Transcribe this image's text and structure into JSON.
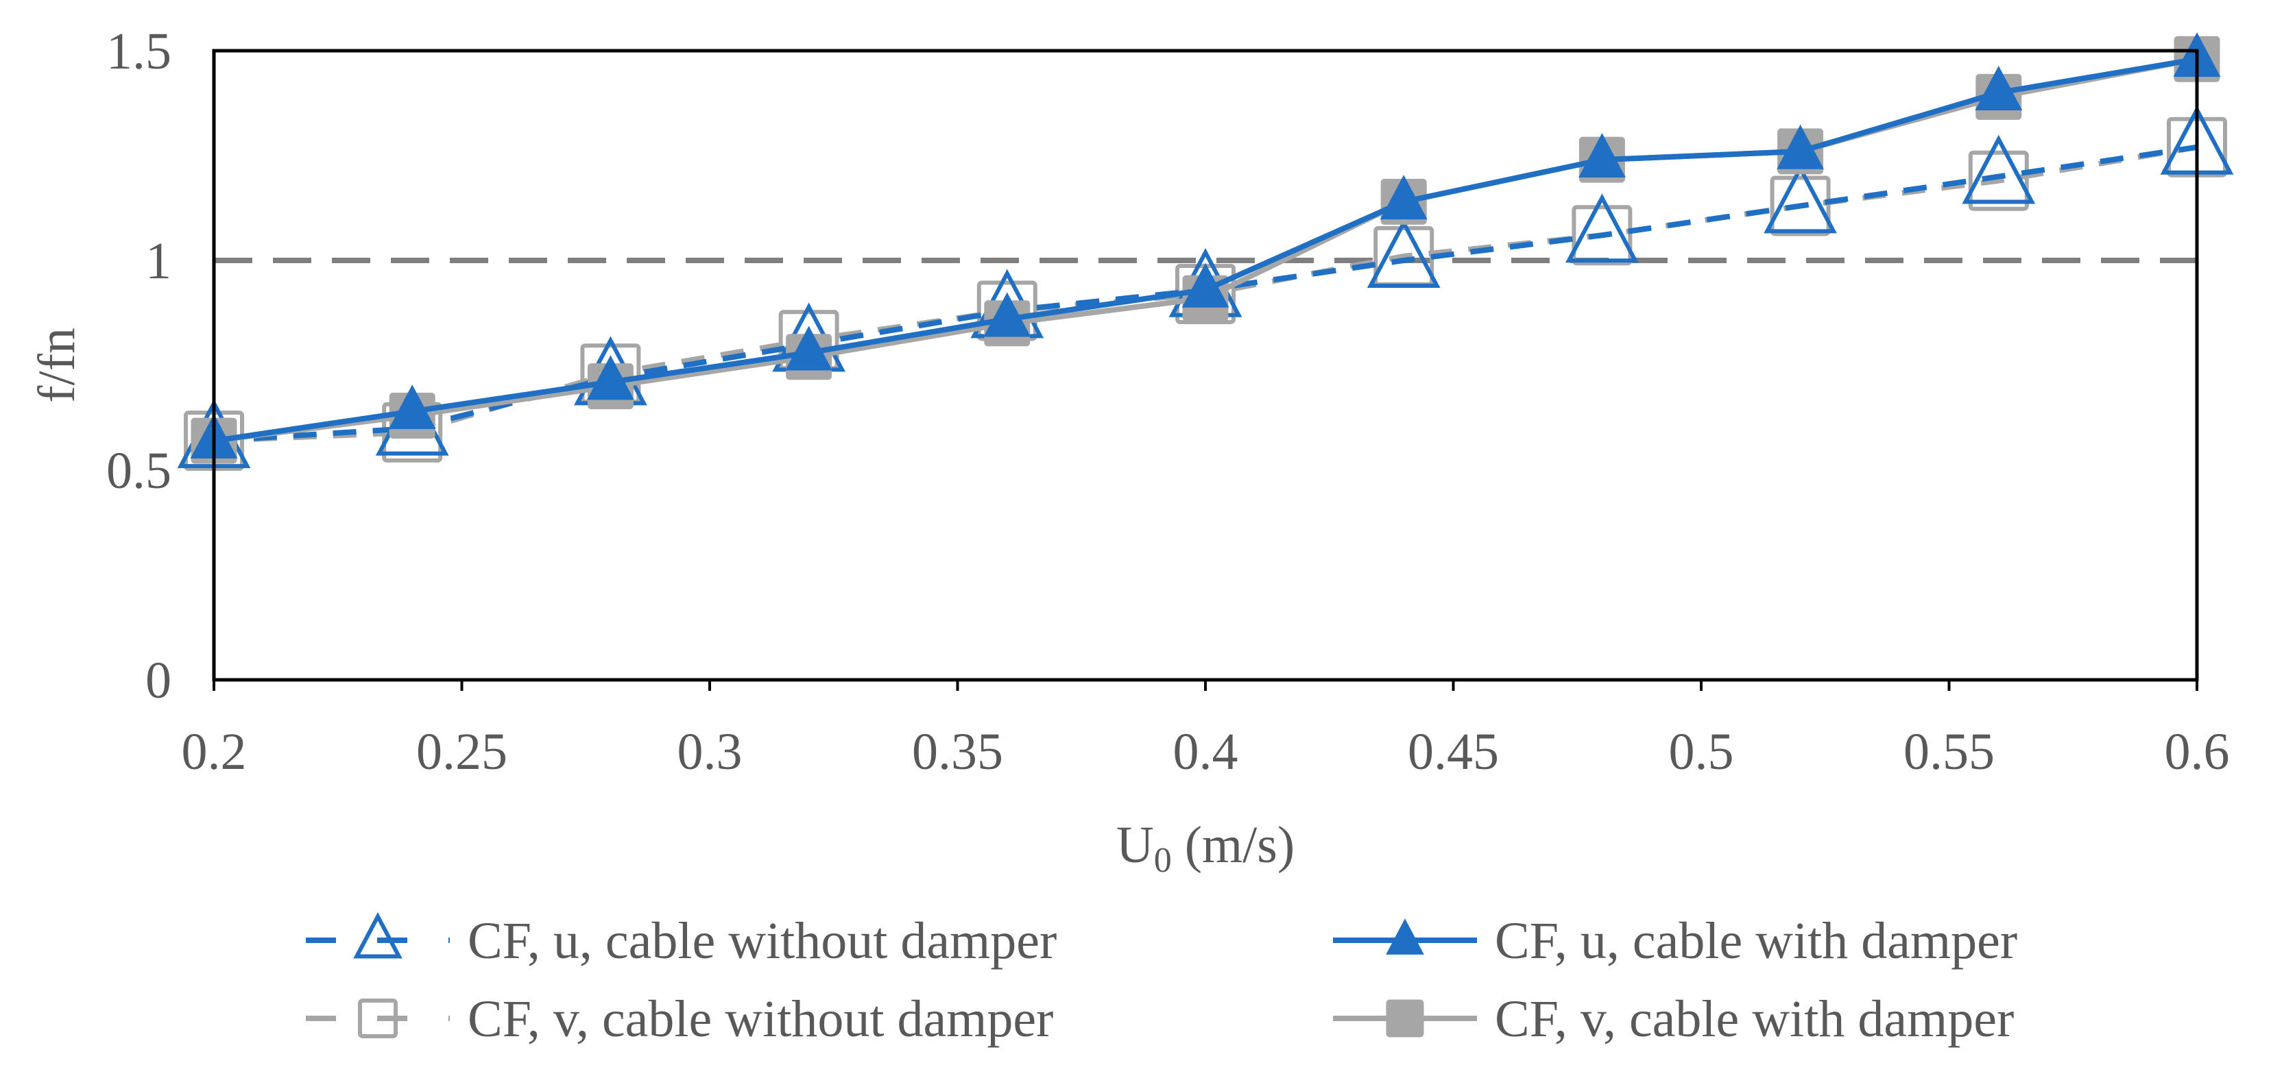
{
  "chart_data": {
    "type": "line",
    "title": "",
    "xlabel": "U",
    "xlabel_sub": "0",
    "xlabel_unit": " (m/s)",
    "ylabel": "f/fn",
    "xlim": [
      0.2,
      0.6
    ],
    "ylim": [
      0,
      1.5
    ],
    "x_ticks": [
      0.2,
      0.25,
      0.3,
      0.35,
      0.4,
      0.45,
      0.5,
      0.55,
      0.6
    ],
    "x_tick_labels": [
      "0.2",
      "0.25",
      "0.3",
      "0.35",
      "0.4",
      "0.45",
      "0.5",
      "0.55",
      "0.6"
    ],
    "y_ticks": [
      0,
      0.5,
      1,
      1.5
    ],
    "y_tick_labels": [
      "0",
      "0.5",
      "1",
      "1.5"
    ],
    "x": [
      0.2,
      0.24,
      0.28,
      0.32,
      0.36,
      0.4,
      0.44,
      0.48,
      0.52,
      0.56,
      0.6
    ],
    "reference_line": {
      "y": 1,
      "color": "#7f7f7f",
      "style": "dashed"
    },
    "series": [
      {
        "name": "CF, u, cable without damper",
        "color": "#1f6fc5",
        "line": "dashed",
        "marker": "triangle-open",
        "values": [
          0.57,
          0.6,
          0.72,
          0.8,
          0.88,
          0.93,
          1.0,
          1.06,
          1.13,
          1.2,
          1.27
        ]
      },
      {
        "name": "CF, u, cable with damper",
        "color": "#1f6fc5",
        "line": "solid",
        "marker": "triangle-filled",
        "values": [
          0.57,
          0.64,
          0.71,
          0.78,
          0.86,
          0.93,
          1.14,
          1.24,
          1.26,
          1.4,
          1.48
        ]
      },
      {
        "name": "CF, v, cable without damper",
        "color": "#a6a6a6",
        "line": "dashed",
        "marker": "square-open",
        "values": [
          0.57,
          0.59,
          0.73,
          0.81,
          0.88,
          0.92,
          1.01,
          1.06,
          1.13,
          1.19,
          1.27
        ]
      },
      {
        "name": "CF, v, cable with damper",
        "color": "#a6a6a6",
        "line": "solid",
        "marker": "square-filled",
        "values": [
          0.57,
          0.63,
          0.7,
          0.77,
          0.85,
          0.91,
          1.14,
          1.24,
          1.26,
          1.39,
          1.48
        ]
      }
    ],
    "legend": {
      "position": "bottom",
      "order": [
        0,
        1,
        2,
        3
      ]
    }
  }
}
